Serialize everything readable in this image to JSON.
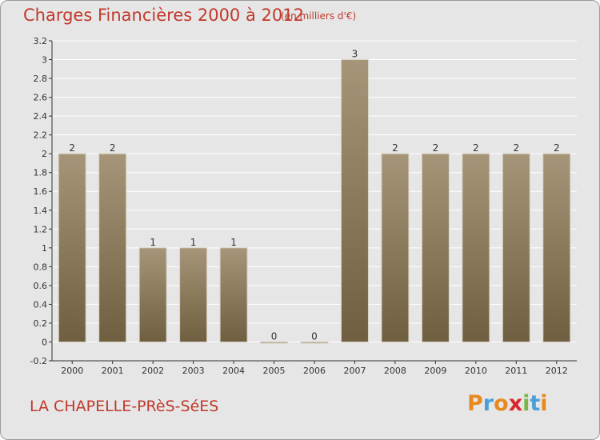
{
  "header": {
    "title": "Charges Financières 2000 à 2012",
    "unit": "(en milliers d'€)"
  },
  "footer": {
    "commune": "LA CHAPELLE-PRèS-SéES",
    "logo_text": "Proxiti"
  },
  "colors": {
    "title": "#c0392b",
    "bar_top": "#a69578",
    "bar_bottom": "#6f5f40",
    "background": "#e6e6e6",
    "grid": "#ffffff",
    "logo": [
      "#e8891f",
      "#4a9fd8",
      "#e8891f",
      "#d9262d",
      "#7ab648",
      "#4a9fd8",
      "#e8891f"
    ]
  },
  "chart_data": {
    "type": "bar",
    "categories": [
      "2000",
      "2001",
      "2002",
      "2003",
      "2004",
      "2005",
      "2006",
      "2007",
      "2008",
      "2009",
      "2010",
      "2011",
      "2012"
    ],
    "values": [
      2,
      2,
      1,
      1,
      1,
      0,
      0,
      3,
      2,
      2,
      2,
      2,
      2
    ],
    "labels": [
      "2",
      "2",
      "1",
      "1",
      "1",
      "0",
      "0",
      "3",
      "2",
      "2",
      "2",
      "2",
      "2"
    ],
    "ylim": [
      -0.2,
      3.2
    ],
    "yticks": [
      -0.2,
      0,
      0.2,
      0.4,
      0.6,
      0.8,
      1,
      1.2,
      1.4,
      1.6,
      1.8,
      2,
      2.2,
      2.4,
      2.6,
      2.8,
      3,
      3.2
    ],
    "ytick_labels": [
      "-0.2",
      "0",
      "0.2",
      "0.4",
      "0.6",
      "0.8",
      "1",
      "1.2",
      "1.4",
      "1.6",
      "1.8",
      "2",
      "2.2",
      "2.4",
      "2.6",
      "2.8",
      "3",
      "3.2"
    ],
    "grid": true
  }
}
